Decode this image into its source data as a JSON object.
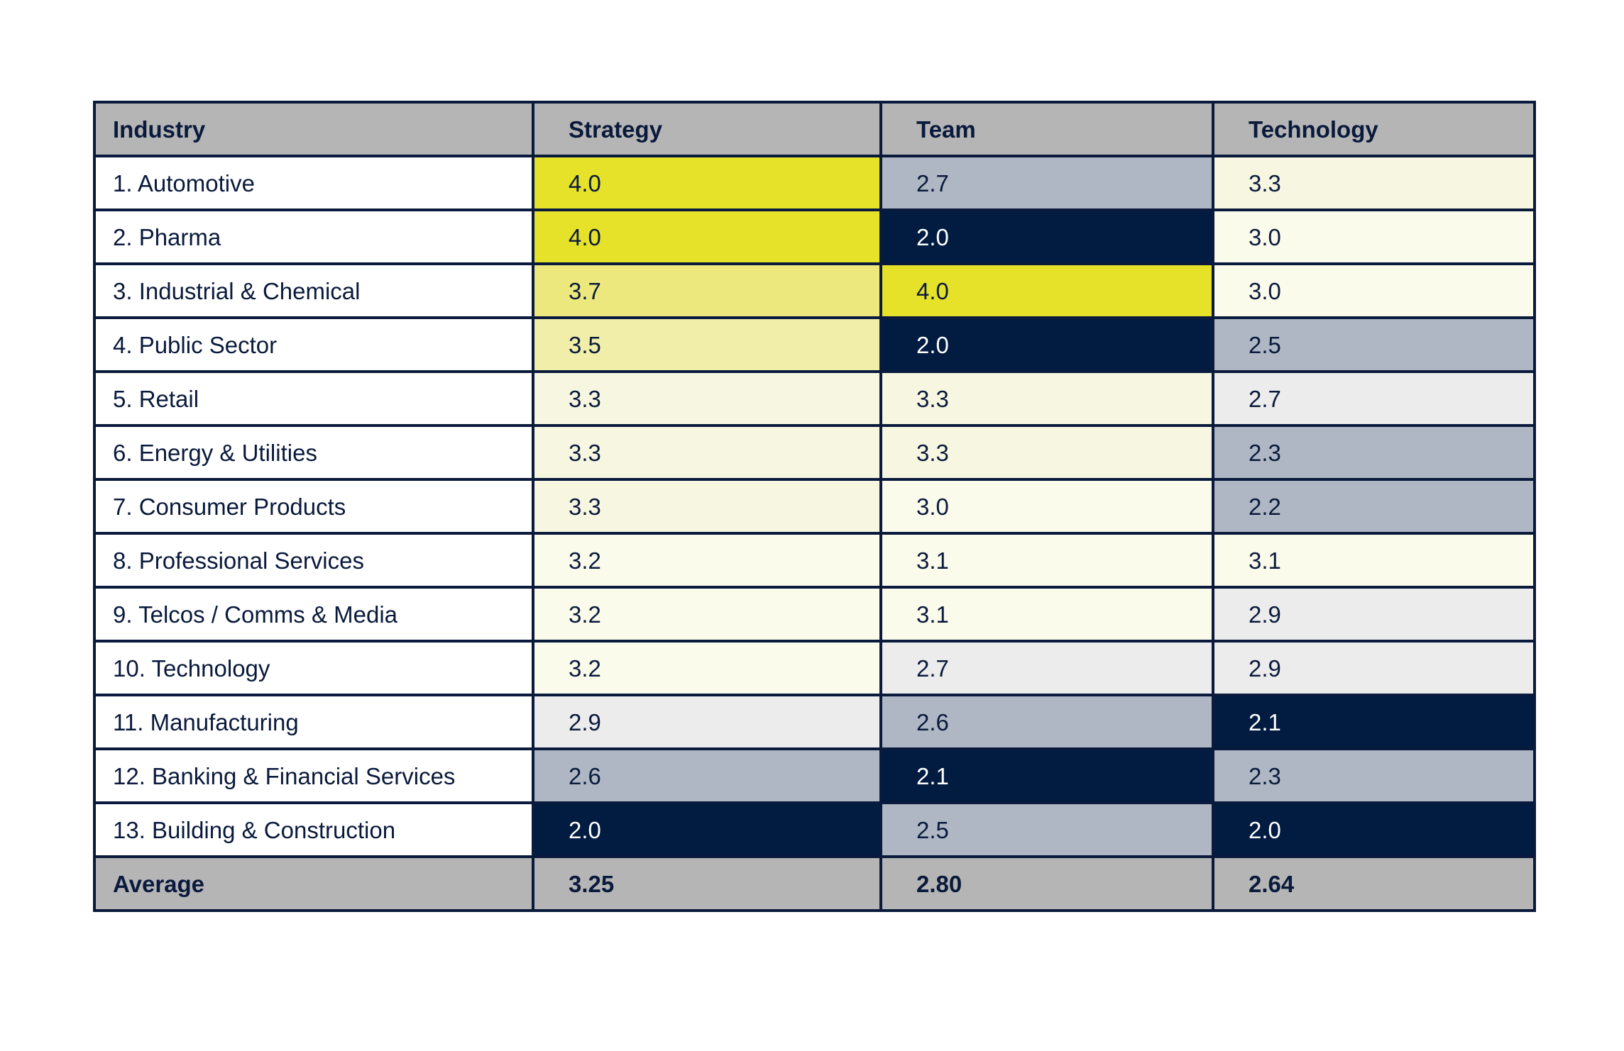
{
  "chart_data": {
    "type": "heatmap",
    "columns": [
      "Industry",
      "Strategy",
      "Team",
      "Technology"
    ],
    "rows": [
      {
        "label": "1. Automotive",
        "values": [
          "4.0",
          "2.7",
          "3.3"
        ]
      },
      {
        "label": "2. Pharma",
        "values": [
          "4.0",
          "2.0",
          "3.0"
        ]
      },
      {
        "label": "3. Industrial & Chemical",
        "values": [
          "3.7",
          "4.0",
          "3.0"
        ]
      },
      {
        "label": "4. Public Sector",
        "values": [
          "3.5",
          "2.0",
          "2.5"
        ]
      },
      {
        "label": "5. Retail",
        "values": [
          "3.3",
          "3.3",
          "2.7"
        ]
      },
      {
        "label": "6. Energy & Utilities",
        "values": [
          "3.3",
          "3.3",
          "2.3"
        ]
      },
      {
        "label": "7. Consumer Products",
        "values": [
          "3.3",
          "3.0",
          "2.2"
        ]
      },
      {
        "label": "8. Professional Services",
        "values": [
          "3.2",
          "3.1",
          "3.1"
        ]
      },
      {
        "label": "9. Telcos / Comms & Media",
        "values": [
          "3.2",
          "3.1",
          "2.9"
        ]
      },
      {
        "label": "10. Technology",
        "values": [
          "3.2",
          "2.7",
          "2.9"
        ]
      },
      {
        "label": "11. Manufacturing",
        "values": [
          "2.9",
          "2.6",
          "2.1"
        ]
      },
      {
        "label": "12. Banking & Financial Services",
        "values": [
          "2.6",
          "2.1",
          "2.3"
        ]
      },
      {
        "label": "13. Building & Construction",
        "values": [
          "2.0",
          "2.5",
          "2.0"
        ]
      }
    ],
    "average": {
      "label": "Average",
      "values": [
        "3.25",
        "2.80",
        "2.64"
      ]
    },
    "cell_colors": [
      [
        "#e6e229",
        "#aeb7c3",
        "#f7f7e1"
      ],
      [
        "#e6e229",
        "#021b41",
        "#fbfbec"
      ],
      [
        "#ede87e",
        "#e6e229",
        "#fbfbec"
      ],
      [
        "#f0eea8",
        "#021b41",
        "#aeb7c3"
      ],
      [
        "#f7f7e1",
        "#f7f7e1",
        "#ececec"
      ],
      [
        "#f7f7e1",
        "#f7f7e1",
        "#aeb7c3"
      ],
      [
        "#f7f7e1",
        "#fbfbec",
        "#aeb7c3"
      ],
      [
        "#fbfbec",
        "#fbfbec",
        "#fbfbec"
      ],
      [
        "#fbfbec",
        "#fbfbec",
        "#ececec"
      ],
      [
        "#fbfbec",
        "#ececec",
        "#ececec"
      ],
      [
        "#ececec",
        "#aeb7c3",
        "#021b41"
      ],
      [
        "#aeb7c3",
        "#021b41",
        "#aeb7c3"
      ],
      [
        "#021b41",
        "#aeb7c3",
        "#021b41"
      ]
    ],
    "header_color": "#b5b5b5",
    "text_color": "#0a1a3c",
    "dark_cell_text_color": "#ffffff"
  }
}
